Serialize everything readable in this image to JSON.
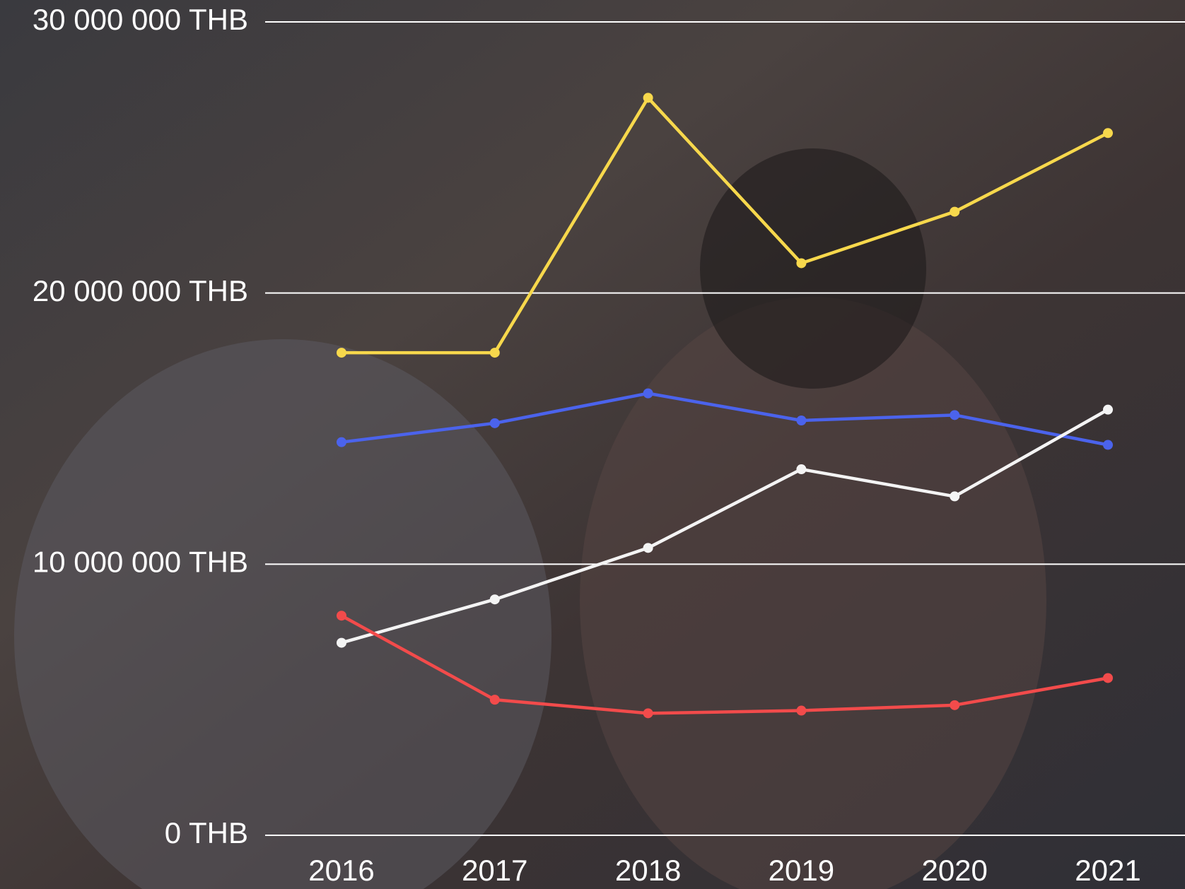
{
  "chart_data": {
    "type": "line",
    "categories": [
      "2016",
      "2017",
      "2018",
      "2019",
      "2020",
      "2021"
    ],
    "series": [
      {
        "color": "#f7d84c",
        "values": [
          17800000,
          17800000,
          27200000,
          21100000,
          23000000,
          25900000
        ]
      },
      {
        "color": "#4b63ec",
        "values": [
          14500000,
          15200000,
          16300000,
          15300000,
          15500000,
          14400000
        ]
      },
      {
        "color": "#f4f4f4",
        "values": [
          7100000,
          8700000,
          10600000,
          13500000,
          12500000,
          15700000
        ]
      },
      {
        "color": "#f24b4b",
        "values": [
          8100000,
          5000000,
          4500000,
          4600000,
          4800000,
          5800000
        ]
      }
    ],
    "ylim": [
      0,
      30000000
    ],
    "yticks": [
      {
        "value": 0,
        "label": "0 THB"
      },
      {
        "value": 10000000,
        "label": "10 000 000 THB"
      },
      {
        "value": 20000000,
        "label": "20 000 000 THB"
      },
      {
        "value": 30000000,
        "label": "30 000 000 THB"
      }
    ],
    "grid": true
  }
}
